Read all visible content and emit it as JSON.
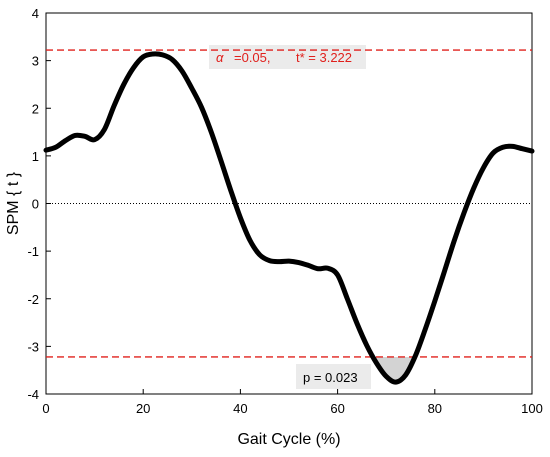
{
  "chart_data": {
    "type": "line",
    "xlabel": "Gait Cycle (%)",
    "ylabel": "SPM { t }",
    "xlim": [
      0,
      100
    ],
    "ylim": [
      -4,
      4
    ],
    "x_ticks": [
      "0",
      "20",
      "40",
      "60",
      "80",
      "100"
    ],
    "y_ticks": [
      "4",
      "3",
      "2",
      "1",
      "0",
      "-1",
      "-2",
      "-3",
      "-4"
    ],
    "threshold": 3.222,
    "threshold_label_alpha": "=0.05,",
    "threshold_label_t": "t* = 3.222",
    "alpha_symbol": "α",
    "cluster_label": "p = 0.023",
    "zero_line": true,
    "grid": false,
    "colors": {
      "curve": "#000000",
      "threshold": "#e0201c",
      "cluster_fill": "#d3d3d3",
      "label_bg": "#ebebeb"
    },
    "series": [
      {
        "x": [
          0,
          2,
          4,
          6,
          8,
          10,
          12,
          14,
          16,
          18,
          20,
          22,
          24,
          26,
          28,
          30,
          32,
          34,
          36,
          38,
          40,
          42,
          44,
          46,
          48,
          50,
          52,
          54,
          56,
          58,
          60,
          62,
          64,
          66,
          68,
          70,
          72,
          74,
          76,
          78,
          80,
          82,
          84,
          86,
          88,
          90,
          92,
          94,
          96,
          98,
          100
        ],
        "values": [
          1.12,
          1.18,
          1.32,
          1.43,
          1.41,
          1.34,
          1.55,
          2.05,
          2.5,
          2.85,
          3.08,
          3.14,
          3.12,
          3.02,
          2.78,
          2.42,
          2.02,
          1.5,
          0.9,
          0.28,
          -0.3,
          -0.78,
          -1.08,
          -1.2,
          -1.22,
          -1.21,
          -1.24,
          -1.3,
          -1.37,
          -1.36,
          -1.5,
          -2.0,
          -2.52,
          -2.98,
          -3.35,
          -3.63,
          -3.75,
          -3.6,
          -3.2,
          -2.65,
          -2.05,
          -1.42,
          -0.78,
          -0.2,
          0.32,
          0.75,
          1.06,
          1.18,
          1.2,
          1.15,
          1.1
        ]
      }
    ]
  }
}
